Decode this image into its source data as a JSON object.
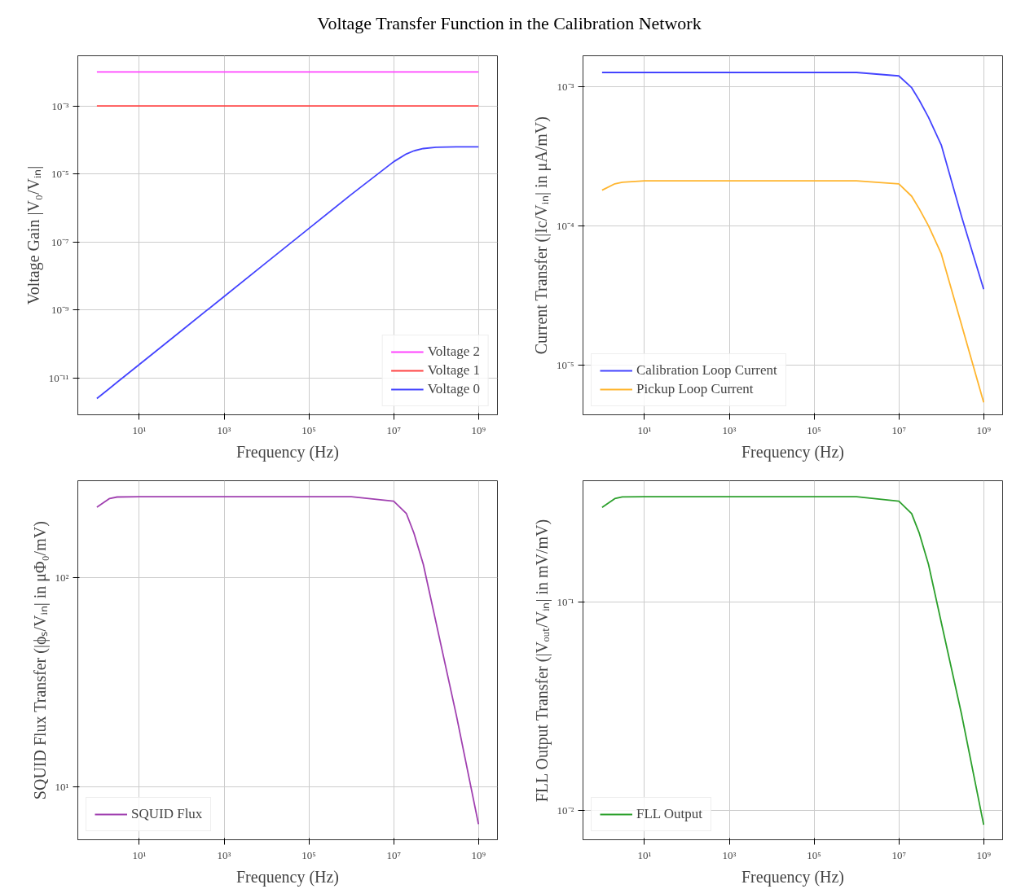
{
  "chart_data": [
    {
      "type": "line",
      "title": "Voltage Transfer Function in the Calibration Network",
      "xlabel": "Frequency (Hz)",
      "ylabel": "Voltage Gain |V₀/Vᵢₙ|",
      "log": "xy",
      "grid": true,
      "legend": "bottom right",
      "x": [
        1,
        2,
        3,
        10,
        100,
        1000,
        10000.0,
        100000.0,
        1000000.0,
        10000000.0,
        20000000.0,
        30000000.0,
        50000000.0,
        100000000.0,
        300000000.0,
        1000000000.0
      ],
      "xlim": [
        0.355,
        2800000000.0
      ],
      "ylim": [
        8.3e-13,
        0.03
      ],
      "xticks": [
        {
          "value": 10,
          "label": "10¹"
        },
        {
          "value": 1000,
          "label": "10³"
        },
        {
          "value": 100000.0,
          "label": "10⁵"
        },
        {
          "value": 10000000.0,
          "label": "10⁷"
        },
        {
          "value": 1000000000.0,
          "label": "10⁹"
        }
      ],
      "yticks": [
        {
          "value": 1e-11,
          "label": "10⁻¹¹"
        },
        {
          "value": 1e-09,
          "label": "10⁻⁹"
        },
        {
          "value": 1e-07,
          "label": "10⁻⁷"
        },
        {
          "value": 1e-05,
          "label": "10⁻⁵"
        },
        {
          "value": 0.001,
          "label": "10⁻³"
        }
      ],
      "series": [
        {
          "name": "Voltage 2",
          "color": "#ff44ff",
          "values": [
            0.01,
            0.01,
            0.01,
            0.01,
            0.01,
            0.01,
            0.01,
            0.01,
            0.01,
            0.01,
            0.01,
            0.01,
            0.01,
            0.01,
            0.01,
            0.01
          ]
        },
        {
          "name": "Voltage 1",
          "color": "#ff4444",
          "values": [
            0.001,
            0.001,
            0.001,
            0.001,
            0.001,
            0.001,
            0.001,
            0.001,
            0.001,
            0.001,
            0.001,
            0.001,
            0.001,
            0.001,
            0.001,
            0.001
          ]
        },
        {
          "name": "Voltage 0",
          "color": "#4444ff",
          "values": [
            2.5e-12,
            5e-12,
            7.5e-12,
            2.5e-11,
            2.5e-10,
            2.5e-09,
            2.5e-08,
            2.5e-07,
            2.5e-06,
            2.3e-05,
            3.9e-05,
            4.8e-05,
            5.6e-05,
            6.1e-05,
            6.3e-05,
            6.3e-05
          ]
        }
      ]
    },
    {
      "type": "line",
      "xlabel": "Frequency (Hz)",
      "ylabel": "Current Transfer (|Ic/Vᵢₙ| in μA/mV)",
      "log": "xy",
      "grid": true,
      "legend": "bottom left",
      "x": [
        1,
        2,
        3,
        10,
        100,
        1000,
        10000.0,
        100000.0,
        1000000.0,
        10000000.0,
        20000000.0,
        30000000.0,
        50000000.0,
        100000000.0,
        300000000.0,
        1000000000.0
      ],
      "xlim": [
        0.355,
        2800000000.0
      ],
      "ylim": [
        4.4e-06,
        0.00166
      ],
      "xticks": [
        {
          "value": 10,
          "label": "10¹"
        },
        {
          "value": 1000,
          "label": "10³"
        },
        {
          "value": 100000.0,
          "label": "10⁵"
        },
        {
          "value": 10000000.0,
          "label": "10⁷"
        },
        {
          "value": 1000000000.0,
          "label": "10⁹"
        }
      ],
      "yticks": [
        {
          "value": 1e-05,
          "label": "10⁻⁵"
        },
        {
          "value": 0.0001,
          "label": "10⁻⁴"
        },
        {
          "value": 0.001,
          "label": "10⁻³"
        }
      ],
      "series": [
        {
          "name": "Calibration Loop Current",
          "color": "#4444ff",
          "values": [
            0.00126,
            0.00126,
            0.00126,
            0.00126,
            0.00126,
            0.00126,
            0.00126,
            0.00126,
            0.00126,
            0.00119,
            0.00098,
            0.0008,
            0.0006,
            0.00038,
            0.000117,
            3.5e-05
          ]
        },
        {
          "name": "Pickup Loop Current",
          "color": "#ffb52e",
          "values": [
            0.00018,
            0.0002,
            0.000205,
            0.00021,
            0.00021,
            0.00021,
            0.00021,
            0.00021,
            0.00021,
            0.0002,
            0.000163,
            0.000133,
            0.0001,
            6.3e-05,
            1.95e-05,
            5.4e-06
          ]
        }
      ]
    },
    {
      "type": "line",
      "xlabel": "Frequency (Hz)",
      "ylabel": "SQUID Flux Transfer (|ϕₛ/Vᵢₙ| in μΦ₀/mV)",
      "log": "xy",
      "grid": true,
      "legend": "bottom left",
      "x": [
        1,
        2,
        3,
        10,
        100,
        1000,
        10000.0,
        100000.0,
        1000000.0,
        10000000.0,
        20000000.0,
        30000000.0,
        50000000.0,
        100000000.0,
        300000000.0,
        1000000000.0
      ],
      "xlim": [
        0.355,
        2800000000.0
      ],
      "ylim": [
        5.56,
        292
      ],
      "xticks": [
        {
          "value": 10,
          "label": "10¹"
        },
        {
          "value": 1000,
          "label": "10³"
        },
        {
          "value": 100000.0,
          "label": "10⁵"
        },
        {
          "value": 10000000.0,
          "label": "10⁷"
        },
        {
          "value": 1000000000.0,
          "label": "10⁹"
        }
      ],
      "yticks": [
        {
          "value": 10,
          "label": "10¹"
        },
        {
          "value": 100,
          "label": "10²"
        }
      ],
      "series": [
        {
          "name": "SQUID Flux",
          "color": "#a040b0",
          "values": [
            218,
            240,
            244,
            245,
            245,
            245,
            245,
            245,
            245,
            233,
            203,
            164,
            116,
            61,
            22,
            6.6
          ]
        }
      ]
    },
    {
      "type": "line",
      "xlabel": "Frequency (Hz)",
      "ylabel": "FLL Output Transfer (|Vₒᵤₜ/Vᵢₙ| in mV/mV)",
      "log": "xy",
      "grid": true,
      "legend": "bottom left",
      "x": [
        1,
        2,
        3,
        10,
        100,
        1000,
        10000.0,
        100000.0,
        1000000.0,
        10000000.0,
        20000000.0,
        30000000.0,
        50000000.0,
        100000000.0,
        300000000.0,
        1000000000.0
      ],
      "xlim": [
        0.355,
        2800000000.0
      ],
      "ylim": [
        0.0072,
        0.384
      ],
      "xticks": [
        {
          "value": 10,
          "label": "10¹"
        },
        {
          "value": 1000,
          "label": "10³"
        },
        {
          "value": 100000.0,
          "label": "10⁵"
        },
        {
          "value": 10000000.0,
          "label": "10⁷"
        },
        {
          "value": 1000000000.0,
          "label": "10⁹"
        }
      ],
      "yticks": [
        {
          "value": 0.01,
          "label": "10⁻²"
        },
        {
          "value": 0.1,
          "label": "10⁻¹"
        }
      ],
      "series": [
        {
          "name": "FLL Output",
          "color": "#2ca02c",
          "values": [
            0.286,
            0.315,
            0.321,
            0.322,
            0.322,
            0.322,
            0.322,
            0.322,
            0.322,
            0.306,
            0.267,
            0.216,
            0.152,
            0.08,
            0.029,
            0.0085
          ]
        }
      ]
    }
  ]
}
